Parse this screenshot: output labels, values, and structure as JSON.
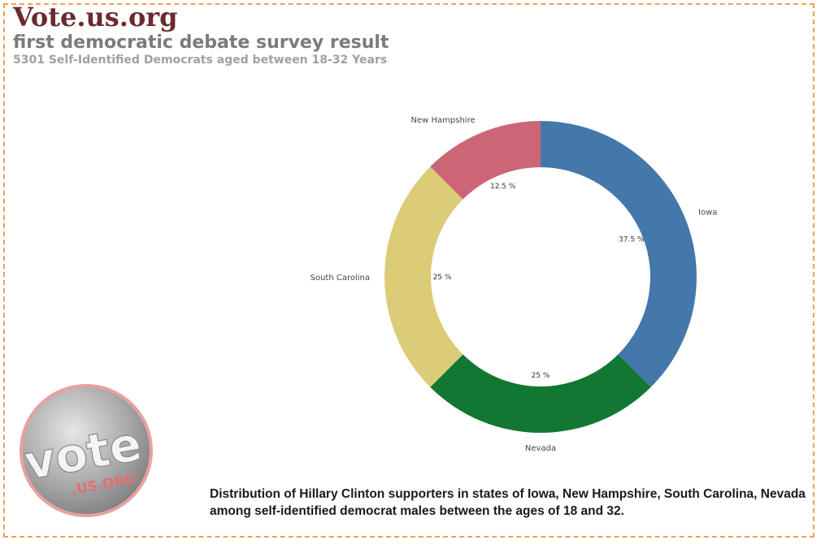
{
  "header": {
    "brand": "Vote.us.org",
    "title": "first democratic debate survey result",
    "subtitle": "5301 Self-Identified Democrats aged between 18-32 Years"
  },
  "caption": "Distribution of Hillary Clinton supporters in states of Iowa, New Hampshire, South Carolina, Nevada among self-identified democrat males between the ages of 18 and 32.",
  "logo": {
    "word": "vote",
    "sub": ".US.ORG"
  },
  "chart_data": {
    "type": "pie",
    "donut": true,
    "title": "",
    "slices": [
      {
        "label": "Iowa",
        "value": 37.5,
        "display": "37.5 %",
        "color": "#4477aa"
      },
      {
        "label": "Nevada",
        "value": 25,
        "display": "25 %",
        "color": "#117733"
      },
      {
        "label": "South Carolina",
        "value": 25,
        "display": "25 %",
        "color": "#ddcc77"
      },
      {
        "label": "New Hampshire",
        "value": 12.5,
        "display": "12.5 %",
        "color": "#cc6677"
      }
    ]
  }
}
